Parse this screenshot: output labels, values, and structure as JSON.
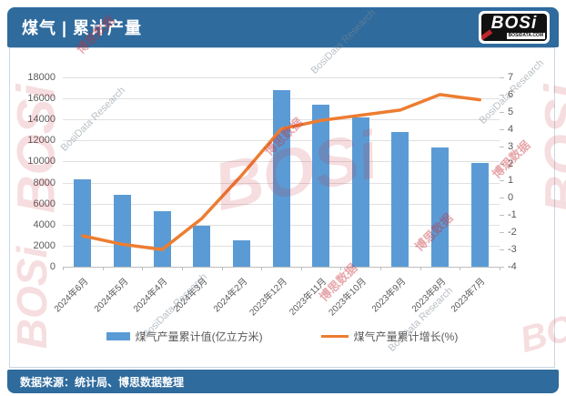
{
  "header": {
    "title": "煤气 | 累计产量",
    "logo": {
      "text": "BOSi",
      "subtext": "BOSIDATA.COM"
    }
  },
  "footer": {
    "source": "数据来源：统计局、博思数据整理"
  },
  "watermarks": {
    "brand": "BOSi",
    "research": "BosiData Research",
    "cn": "博思数据"
  },
  "colors": {
    "header_bg": "#2F6B9D",
    "bar": "#5B9BD5",
    "line": "#ED7D31",
    "grid": "#e0e0e0",
    "axis_text": "#595959"
  },
  "chart_data": {
    "type": "bar",
    "title": "煤气 | 累计产量",
    "categories": [
      "2024年6月",
      "2024年5月",
      "2024年4月",
      "2024年3月",
      "2024年2月",
      "2023年12月",
      "2023年11月",
      "2023年10月",
      "2023年9月",
      "2023年8月",
      "2023年7月"
    ],
    "series": [
      {
        "name": "煤气产量累计值(亿立方米)",
        "type": "bar",
        "axis": "left",
        "color": "#5B9BD5",
        "values": [
          8300,
          6800,
          5300,
          3900,
          2500,
          16800,
          15400,
          14200,
          12800,
          11300,
          9900
        ]
      },
      {
        "name": "煤气产量累计增长(%)",
        "type": "line",
        "axis": "right",
        "color": "#ED7D31",
        "values": [
          -2.2,
          -2.7,
          -3.0,
          -1.2,
          1.3,
          4.0,
          4.5,
          4.8,
          5.1,
          6.0,
          5.7
        ]
      }
    ],
    "left_axis": {
      "min": 0,
      "max": 18000,
      "step": 2000,
      "ticks": [
        "18000",
        "16000",
        "14000",
        "12000",
        "10000",
        "8000",
        "6000",
        "4000",
        "2000",
        "0"
      ]
    },
    "right_axis": {
      "min": -4,
      "max": 7,
      "step": 1,
      "ticks": [
        "7",
        "6",
        "5",
        "4",
        "3",
        "2",
        "1",
        "0",
        "-1",
        "-2",
        "-3",
        "-4"
      ]
    },
    "grid": true,
    "legend_position": "bottom"
  }
}
